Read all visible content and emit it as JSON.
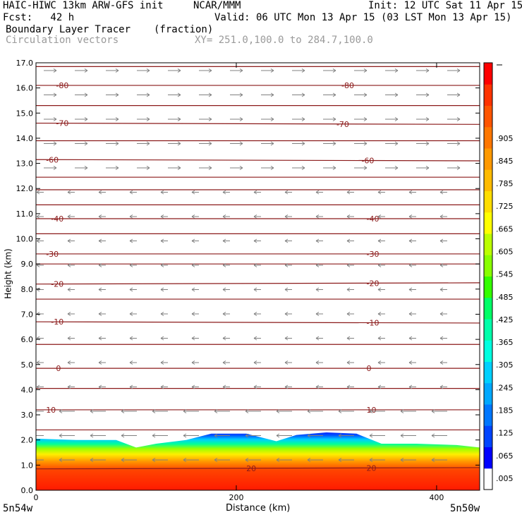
{
  "header": {
    "model": "HAIC-HIWC 13km ARW-GFS init",
    "org": "NCAR/MMM",
    "init": "Init: 12 UTC Sat 11 Apr 15",
    "fcst": "Fcst:   42 h",
    "valid": "Valid: 06 UTC Mon 13 Apr 15 (03 LST Mon 13 Apr 15)",
    "field": "Boundary Layer Tracer",
    "field_units": "(fraction)",
    "overlay": "Circulation vectors",
    "xy": "XY= 251.0,100.0 to 284.7,100.0"
  },
  "colors": {
    "contour": "#8b1a1a",
    "vector": "#808080",
    "palette": [
      "#ffffff",
      "#0000ff",
      "#0044ff",
      "#0077ff",
      "#00a8ff",
      "#00d0ff",
      "#00ffe0",
      "#00ffaa",
      "#00ff66",
      "#33ff00",
      "#88ff00",
      "#bbff00",
      "#ffff00",
      "#ffdd00",
      "#ffbb00",
      "#ff9900",
      "#ff7700",
      "#ff5500",
      "#ff3300",
      "#ff0000"
    ]
  },
  "chart_data": {
    "type": "heatmap",
    "xlabel": "Distance (km)",
    "ylabel": "Height (km)",
    "xlim": [
      0,
      443
    ],
    "ylim": [
      0,
      17
    ],
    "x_ticks": [
      0,
      200,
      400
    ],
    "y_ticks": [
      "0.0",
      "1.0",
      "2.0",
      "3.0",
      "4.0",
      "5.0",
      "6.0",
      "7.0",
      "8.0",
      "9.0",
      "10.0",
      "11.0",
      "12.0",
      "13.0",
      "14.0",
      "15.0",
      "16.0",
      "17.0"
    ],
    "x_end_labels": [
      "5n54w",
      "5n50w"
    ],
    "colorbar_labels": [
      ".005",
      ".065",
      ".125",
      ".185",
      ".245",
      ".305",
      ".365",
      ".425",
      ".485",
      ".545",
      ".605",
      ".665",
      ".725",
      ".785",
      ".845",
      ".905"
    ],
    "colorbar_range": [
      0.005,
      1.0
    ],
    "bl_top_profile": {
      "x": [
        0,
        40,
        80,
        100,
        120,
        150,
        175,
        210,
        240,
        260,
        290,
        320,
        345,
        380,
        420,
        443
      ],
      "top": [
        2.05,
        2.0,
        2.0,
        1.7,
        1.85,
        2.0,
        2.25,
        2.25,
        1.95,
        2.2,
        2.3,
        2.25,
        1.85,
        1.85,
        1.8,
        1.7
      ]
    },
    "temperature_contours": [
      {
        "label": "-80",
        "heights": [
          16.1,
          16.1
        ],
        "label_x": [
          20,
          305
        ]
      },
      {
        "label": "-70",
        "heights": [
          14.6,
          14.55
        ],
        "label_x": [
          20,
          300
        ]
      },
      {
        "label": "-60",
        "heights": [
          13.15,
          13.1
        ],
        "label_x": [
          10,
          325
        ]
      },
      {
        "label": "-40",
        "heights": [
          10.8,
          10.8
        ],
        "label_x": [
          15,
          330
        ]
      },
      {
        "label": "-30",
        "heights": [
          9.4,
          9.4
        ],
        "label_x": [
          10,
          330
        ]
      },
      {
        "label": "-20",
        "heights": [
          8.2,
          8.25
        ],
        "label_x": [
          15,
          330
        ]
      },
      {
        "label": "-10",
        "heights": [
          6.7,
          6.65
        ],
        "label_x": [
          15,
          330
        ]
      },
      {
        "label": "0",
        "heights": [
          4.85,
          4.85
        ],
        "label_x": [
          20,
          330
        ]
      },
      {
        "label": "10",
        "heights": [
          3.2,
          3.2
        ],
        "label_x": [
          10,
          330
        ]
      },
      {
        "label": "20",
        "heights": [
          0.85,
          0.9
        ],
        "label_x": [
          210,
          330
        ]
      }
    ],
    "unlabeled_contour_heights": [
      16.85,
      15.3,
      13.9,
      12.45,
      11.95,
      11.35,
      10.2,
      9.0,
      7.6,
      5.8,
      4.05,
      2.4
    ]
  }
}
